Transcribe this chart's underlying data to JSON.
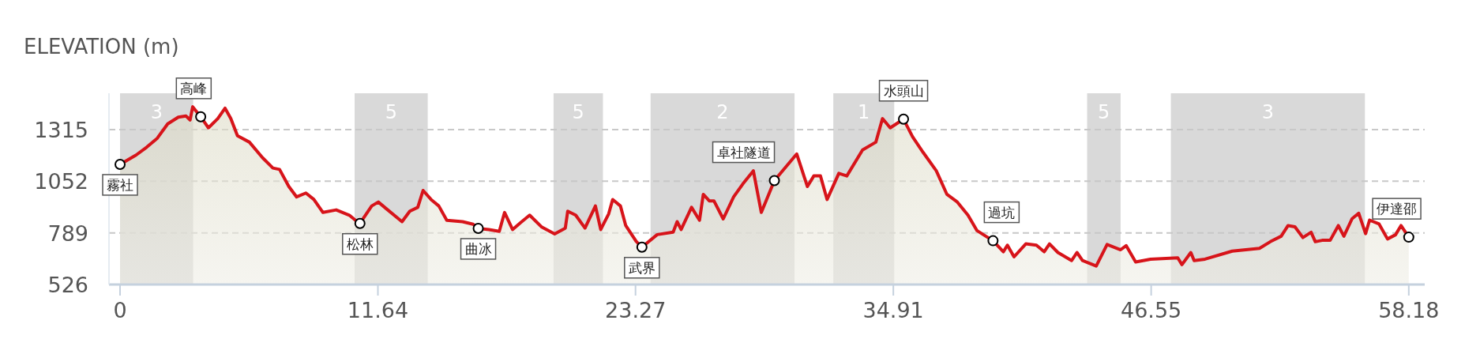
{
  "chart_data": {
    "type": "area",
    "title": "ELEVATION (m)",
    "x": [
      0,
      0.72,
      1.2,
      1.68,
      2.15,
      2.63,
      2.98,
      3.16,
      3.28,
      3.64,
      3.99,
      4.41,
      4.74,
      5.0,
      5.3,
      5.84,
      6.43,
      6.9,
      7.2,
      7.62,
      7.97,
      8.39,
      8.75,
      9.16,
      9.76,
      10.35,
      10.77,
      10.83,
      11.36,
      11.66,
      12.01,
      12.73,
      13.08,
      13.44,
      13.68,
      14.04,
      14.39,
      14.75,
      15.46,
      15.94,
      16.17,
      16.65,
      17.12,
      17.36,
      17.72,
      18.07,
      18.49,
      19.02,
      19.62,
      20.1,
      20.21,
      20.57,
      20.99,
      21.46,
      21.7,
      22.06,
      22.24,
      22.59,
      22.83,
      23.3,
      23.56,
      24.25,
      24.97,
      25.15,
      25.33,
      25.8,
      26.16,
      26.33,
      26.6,
      26.81,
      27.23,
      27.7,
      28.12,
      28.59,
      28.95,
      29.54,
      30.55,
      31.03,
      31.32,
      31.62,
      31.92,
      32.45,
      32.81,
      33.52,
      34.12,
      34.42,
      34.77,
      35.37,
      35.78,
      36.26,
      36.85,
      37.33,
      37.8,
      38.28,
      38.69,
      39.41,
      39.88,
      40.06,
      40.36,
      40.89,
      41.37,
      41.72,
      41.96,
      42.34,
      42.96,
      43.2,
      43.45,
      44.07,
      44.56,
      45.17,
      45.42,
      45.85,
      46.52,
      47.75,
      47.94,
      48.34,
      48.49,
      48.98,
      50.21,
      51.44,
      51.93,
      52.42,
      52.73,
      53.04,
      53.4,
      53.77,
      53.96,
      54.27,
      54.63,
      55.0,
      55.25,
      55.62,
      55.92,
      56.23,
      56.41,
      56.84,
      57.22,
      57.58,
      57.83,
      58.18
    ],
    "series": [
      {
        "color": "#d7141a",
        "values": [
          1138,
          1185,
          1225,
          1271,
          1344,
          1378,
          1384,
          1364,
          1431,
          1380,
          1324,
          1371,
          1424,
          1371,
          1284,
          1251,
          1172,
          1119,
          1112,
          1025,
          972,
          992,
          959,
          893,
          906,
          879,
          840,
          837,
          926,
          946,
          913,
          846,
          899,
          919,
          1005,
          959,
          926,
          853,
          846,
          833,
          812,
          806,
          797,
          893,
          806,
          840,
          879,
          820,
          784,
          813,
          899,
          879,
          813,
          926,
          806,
          886,
          959,
          926,
          826,
          746,
          716,
          780,
          793,
          846,
          806,
          919,
          853,
          985,
          952,
          952,
          860,
          972,
          1039,
          1105,
          893,
          1055,
          1191,
          1025,
          1079,
          1079,
          959,
          1092,
          1079,
          1211,
          1251,
          1371,
          1324,
          1368,
          1278,
          1198,
          1105,
          985,
          946,
          879,
          800,
          749,
          693,
          726,
          667,
          733,
          726,
          693,
          733,
          689,
          648,
          689,
          648,
          620,
          730,
          703,
          724,
          641,
          655,
          662,
          627,
          689,
          648,
          655,
          696,
          710,
          744,
          772,
          826,
          820,
          765,
          792,
          744,
          751,
          751,
          826,
          772,
          861,
          889,
          785,
          854,
          834,
          758,
          779,
          826,
          767
        ]
      }
    ],
    "xlim": [
      -0.5,
      58.9
    ],
    "ylim": [
      526,
      1500
    ],
    "xticks": [
      0,
      11.64,
      23.27,
      34.91,
      46.55,
      58.18
    ],
    "yticks": [
      526,
      789,
      1052,
      1315
    ],
    "grid": "y",
    "bands": [
      {
        "axis": "x",
        "from": 0,
        "to": 3.3,
        "label": "3",
        "color": "#d9d9d9"
      },
      {
        "axis": "x",
        "from": 10.59,
        "to": 13.89,
        "label": "5",
        "color": "#d9d9d9"
      },
      {
        "axis": "x",
        "from": 19.57,
        "to": 21.8,
        "label": "5",
        "color": "#d9d9d9"
      },
      {
        "axis": "x",
        "from": 23.95,
        "to": 30.45,
        "label": "2",
        "color": "#d9d9d9"
      },
      {
        "axis": "x",
        "from": 32.2,
        "to": 34.95,
        "label": "1",
        "color": "#d9d9d9"
      },
      {
        "axis": "x",
        "from": 43.66,
        "to": 45.17,
        "label": "5",
        "color": "#d9d9d9"
      },
      {
        "axis": "x",
        "from": 47.44,
        "to": 56.2,
        "label": "3",
        "color": "#d9d9d9"
      }
    ],
    "annotations": [
      {
        "text": "霧社",
        "x": 0,
        "y": 1138
      },
      {
        "text": "高峰",
        "x": 3.64,
        "y": 1380
      },
      {
        "text": "松林",
        "x": 10.83,
        "y": 837
      },
      {
        "text": "曲冰",
        "x": 16.17,
        "y": 812
      },
      {
        "text": "武界",
        "x": 23.56,
        "y": 716
      },
      {
        "text": "卓社隧道",
        "x": 29.54,
        "y": 1055
      },
      {
        "text": "水頭山",
        "x": 35.37,
        "y": 1368
      },
      {
        "text": "過坑",
        "x": 39.41,
        "y": 749
      },
      {
        "text": "伊達邵",
        "x": 58.18,
        "y": 767
      }
    ]
  }
}
